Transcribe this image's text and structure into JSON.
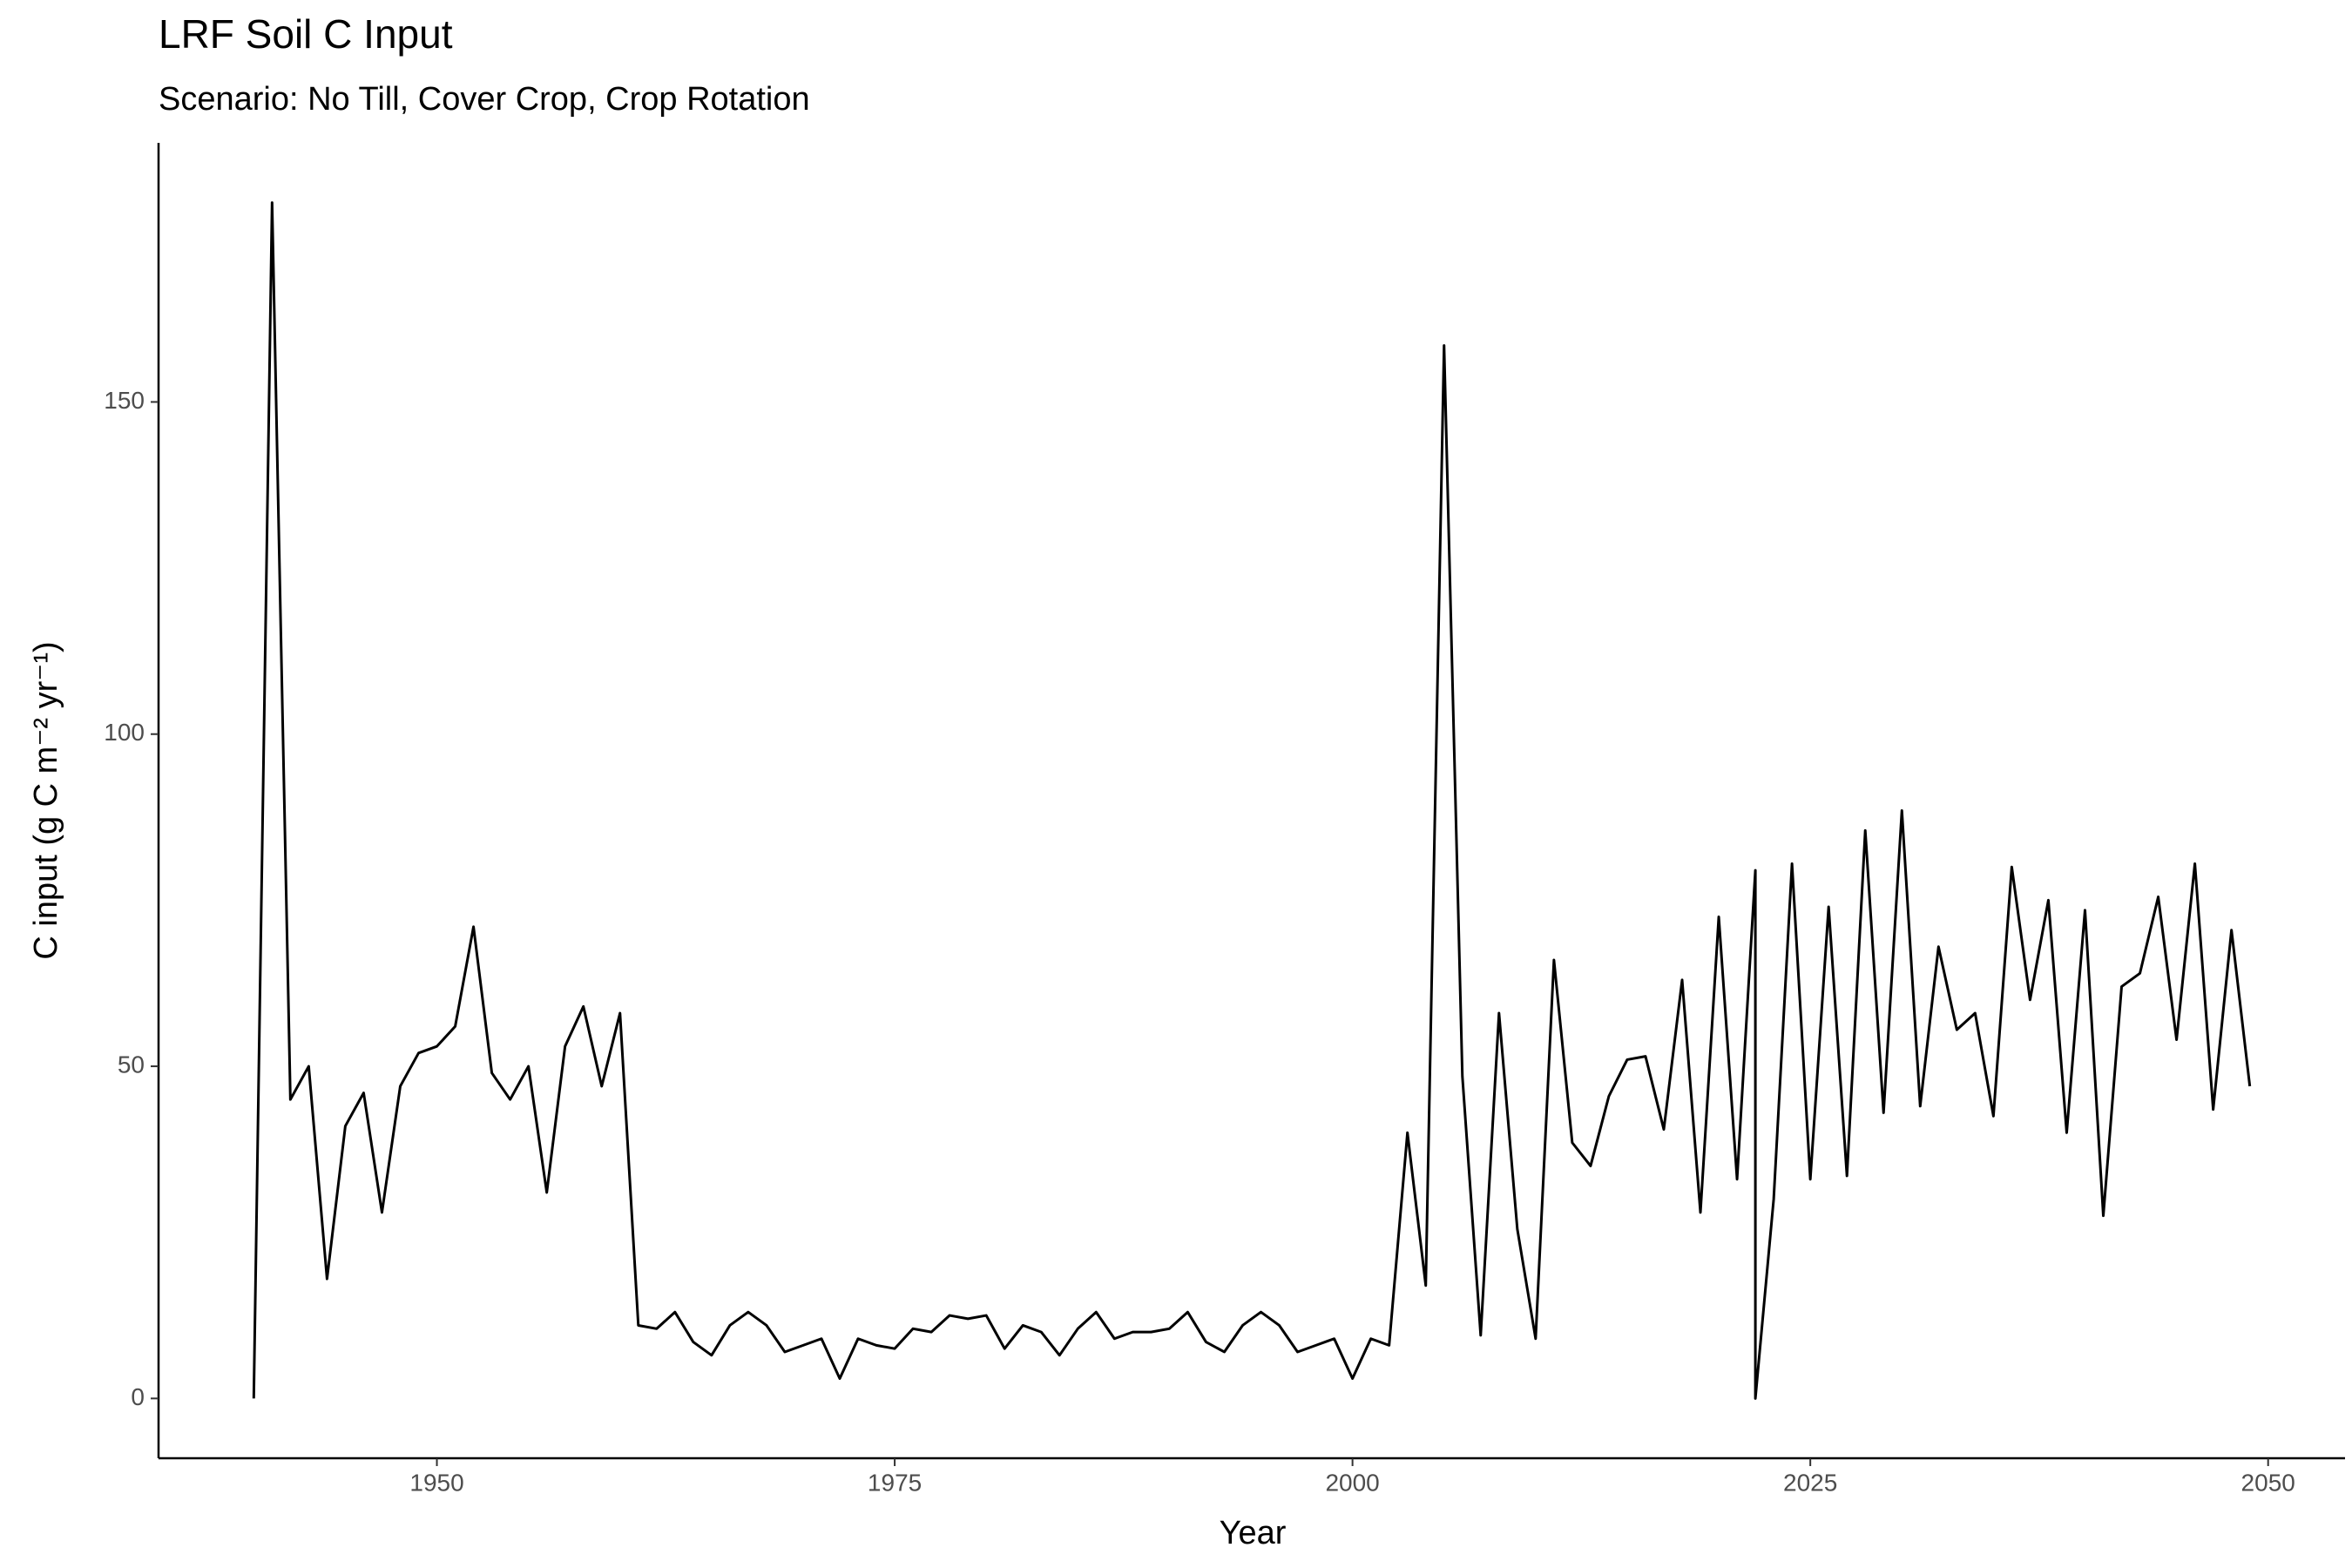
{
  "chart_data": {
    "type": "line",
    "title": "LRF Soil C Input",
    "subtitle": "Scenario: No Till, Cover Crop, Crop Rotation",
    "x_label": "Year",
    "y_label": "C input (g C m⁻² yr⁻¹)",
    "color": "#000000",
    "x": [
      1940,
      1941,
      1942,
      1943,
      1944,
      1945,
      1946,
      1947,
      1948,
      1949,
      1950,
      1951,
      1952,
      1953,
      1954,
      1955,
      1956,
      1957,
      1958,
      1959,
      1960,
      1961,
      1962,
      1963,
      1964,
      1965,
      1966,
      1967,
      1968,
      1969,
      1970,
      1971,
      1972,
      1973,
      1974,
      1975,
      1976,
      1977,
      1978,
      1979,
      1980,
      1981,
      1982,
      1983,
      1984,
      1985,
      1986,
      1987,
      1988,
      1989,
      1990,
      1991,
      1992,
      1993,
      1994,
      1995,
      1996,
      1997,
      1998,
      1999,
      2000,
      2001,
      2002,
      2003,
      2004,
      2005,
      2006,
      2007,
      2008,
      2009,
      2010,
      2011,
      2012,
      2013,
      2014,
      2015,
      2016,
      2017,
      2018,
      2019,
      2020,
      2021,
      2022,
      2022,
      2023,
      2024,
      2025,
      2026,
      2027,
      2028,
      2029,
      2030,
      2031,
      2032,
      2033,
      2034,
      2035,
      2036,
      2037,
      2038,
      2039,
      2040,
      2041,
      2042,
      2043,
      2044,
      2045,
      2046,
      2047,
      2048,
      2049
    ],
    "values": [
      0,
      180,
      45,
      50,
      18,
      41,
      46,
      28,
      47,
      52,
      53,
      56,
      71,
      49,
      45,
      50,
      31,
      53,
      59,
      47,
      58,
      11,
      10.5,
      13,
      8.5,
      6.5,
      11,
      13,
      11,
      7,
      8,
      9,
      3,
      9,
      8,
      7.5,
      10.5,
      10,
      12.5,
      12,
      12.5,
      7.5,
      11,
      10,
      6.5,
      10.5,
      13,
      9,
      10,
      10,
      10.5,
      13,
      8.5,
      7,
      11,
      13,
      11,
      7,
      8,
      9,
      3,
      9,
      8,
      40,
      17,
      158.5,
      48.5,
      9.5,
      58,
      25.5,
      9,
      66,
      38.5,
      35,
      45.5,
      51,
      51.5,
      40.5,
      63,
      28,
      72.5,
      33,
      79.5,
      0,
      30,
      80.5,
      33,
      74,
      33.5,
      85.5,
      43,
      88.5,
      44,
      68,
      55.5,
      58,
      42.5,
      80,
      60,
      75,
      40,
      73.5,
      27.5,
      62,
      64,
      75.5,
      54,
      80.5,
      43.5,
      70.5,
      47
    ],
    "xlim": [
      1934.8,
      2054.2
    ],
    "ylim": [
      -9,
      189
    ],
    "xticks": [
      1950,
      1975,
      2000,
      2025,
      2050
    ],
    "yticks": [
      0,
      50,
      100,
      150
    ]
  }
}
